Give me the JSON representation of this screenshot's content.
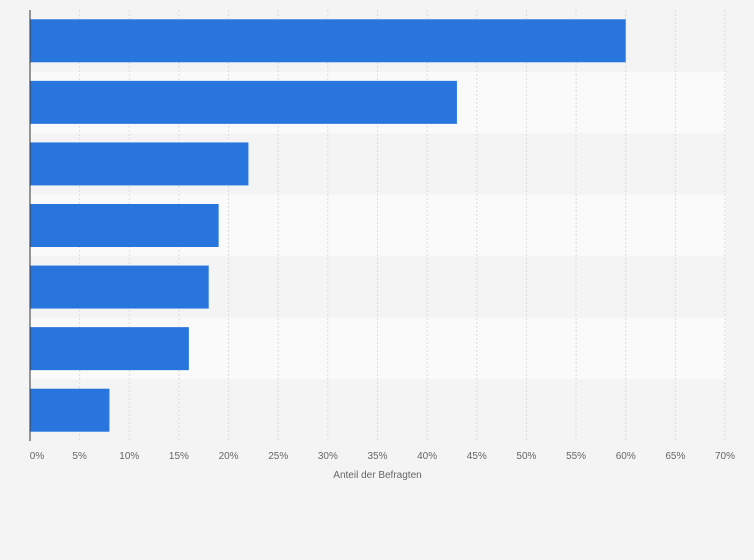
{
  "chart_data": {
    "type": "bar",
    "orientation": "horizontal",
    "title": "",
    "xlabel": "Anteil der Befragten",
    "ylabel": "",
    "categories": [
      "",
      "",
      "",
      "",
      "",
      "",
      ""
    ],
    "values": [
      60,
      43,
      22,
      19,
      18,
      16,
      8
    ],
    "xlim": [
      0,
      70
    ],
    "x_ticks": [
      0,
      5,
      10,
      15,
      20,
      25,
      30,
      35,
      40,
      45,
      50,
      55,
      60,
      65,
      70
    ],
    "x_tick_labels": [
      "0%",
      "5%",
      "10%",
      "15%",
      "20%",
      "25%",
      "30%",
      "35%",
      "40%",
      "45%",
      "50%",
      "55%",
      "60%",
      "65%",
      "70%"
    ],
    "grid": true,
    "bar_color": "#2876dd",
    "band_colors": [
      "#f4f4f4",
      "#fafafa"
    ],
    "grid_color": "#dcdcdc",
    "axis_color": "#333333"
  }
}
